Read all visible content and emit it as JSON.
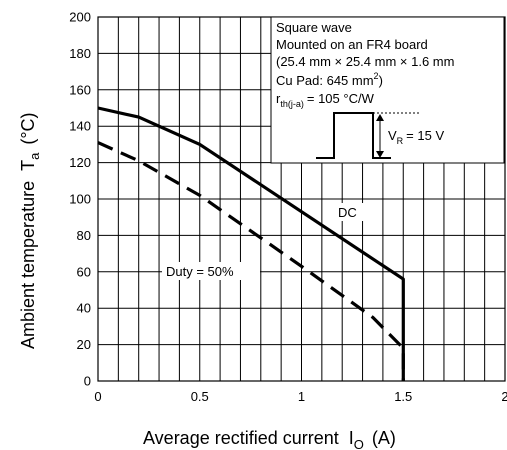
{
  "chart_data": {
    "type": "line",
    "xlabel": "Average rectified current",
    "xlabel_symbol": "I",
    "xlabel_sub": "O",
    "xlabel_unit": "(A)",
    "ylabel": "Ambient temperature",
    "ylabel_symbol": "T",
    "ylabel_sub": "a",
    "ylabel_unit": "(°C)",
    "xlim": [
      0,
      2
    ],
    "ylim": [
      0,
      200
    ],
    "x_ticks": [
      0,
      0.5,
      1,
      1.5,
      2
    ],
    "x_tick_labels": [
      "0",
      "0.5",
      "1",
      "1.5",
      "2"
    ],
    "y_ticks": [
      0,
      20,
      40,
      60,
      80,
      100,
      120,
      140,
      160,
      180,
      200
    ],
    "y_tick_labels": [
      "0",
      "20",
      "40",
      "60",
      "80",
      "100",
      "120",
      "140",
      "160",
      "180",
      "200"
    ],
    "grid": true,
    "series": [
      {
        "name": "DC",
        "style": "solid",
        "color": "#000000",
        "x": [
          0,
          0.2,
          0.5,
          1.0,
          1.5,
          1.5
        ],
        "y": [
          150,
          145,
          130,
          93,
          56,
          0
        ]
      },
      {
        "name": "Duty = 50%",
        "style": "dashed",
        "color": "#000000",
        "x": [
          0,
          0.2,
          0.5,
          1.0,
          1.35,
          1.5,
          1.5
        ],
        "y": [
          131,
          121,
          102,
          63,
          35,
          18,
          0
        ]
      }
    ],
    "annotation_box": {
      "lines": [
        "Square wave",
        "Mounted on an FR4 board",
        "(25.4 mm × 25.4 mm × 1.6 mm",
        "Cu Pad: 645 mm",
        "r",
        "V"
      ],
      "cu_pad_sup": "2",
      "cu_pad_close": ")",
      "rth_sub": "th(j-a)",
      "rth_value": "= 105 °C/W",
      "vr_sub": "R",
      "vr_value": "= 15 V"
    }
  }
}
